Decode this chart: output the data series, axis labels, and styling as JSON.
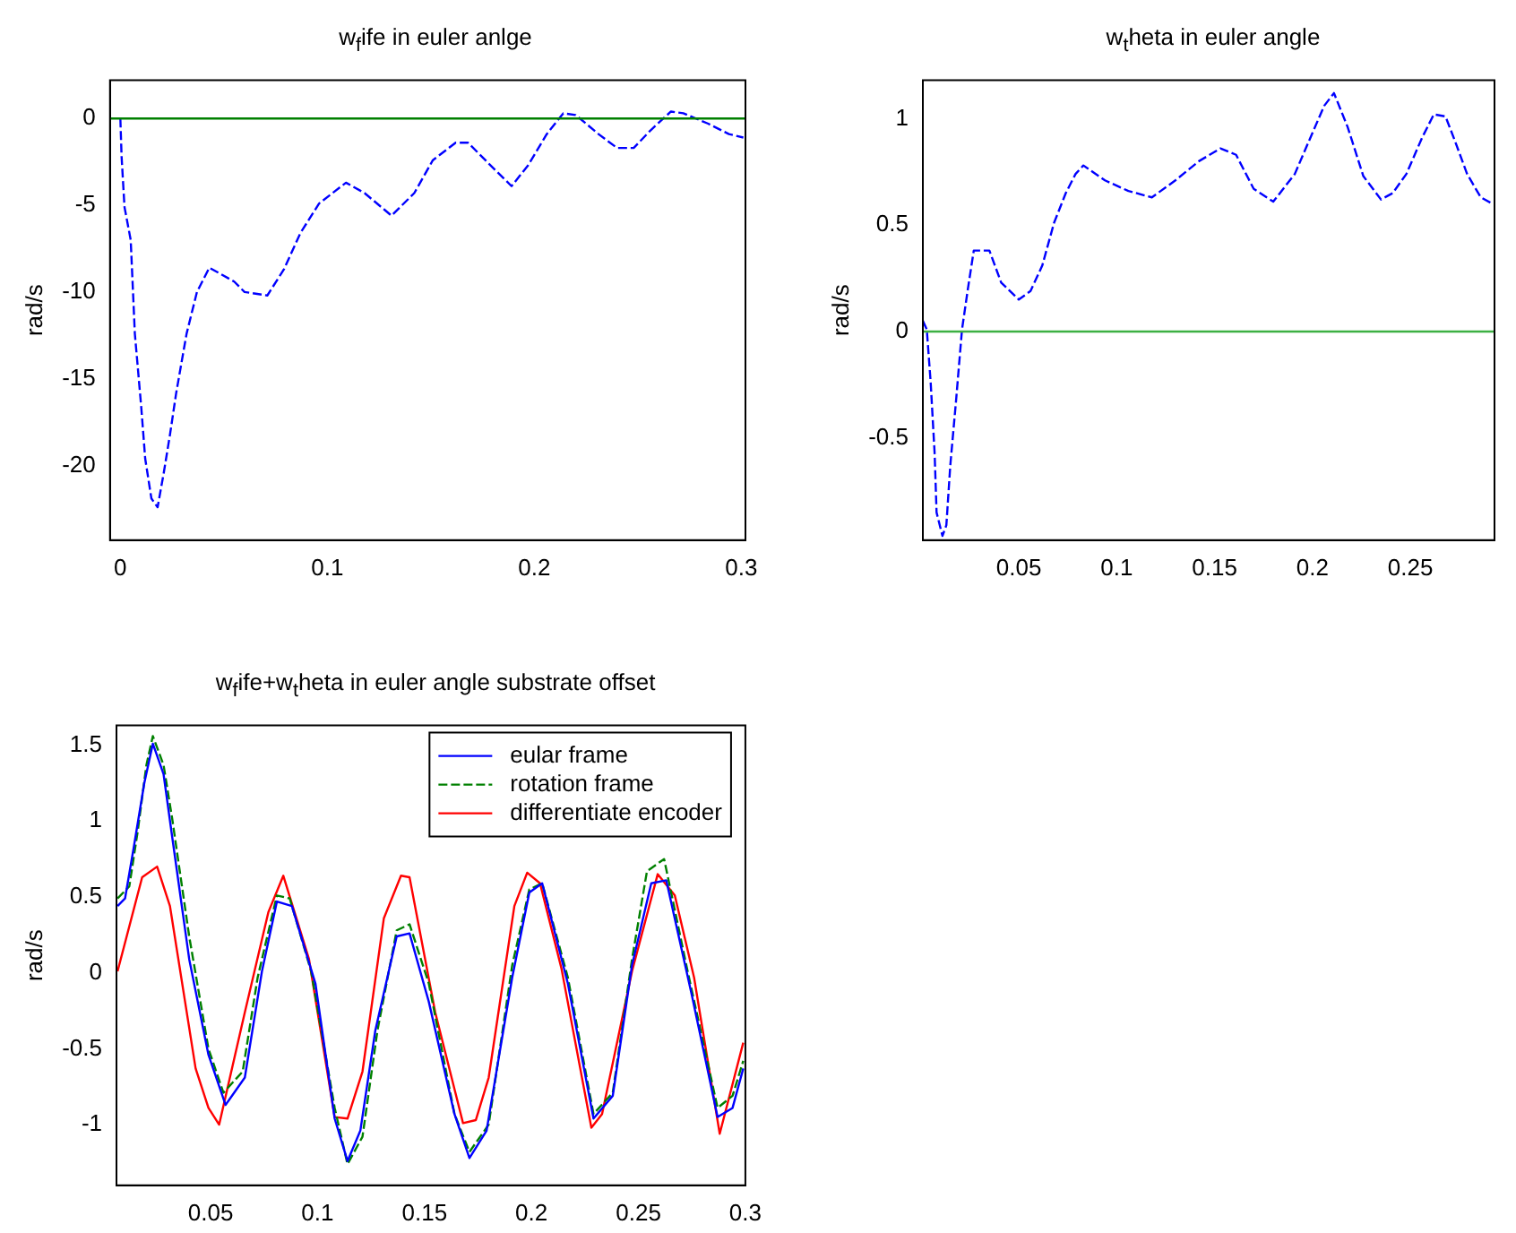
{
  "chart_data": [
    {
      "type": "line",
      "title": "w$_{f}$ife in euler anlge",
      "ylabel": "rad/s",
      "xlim": [
        -0.005,
        0.302
      ],
      "ylim": [
        -24.3,
        2.2
      ],
      "xticks": [
        0,
        0.1,
        0.2,
        0.3
      ],
      "yticks": [
        -20,
        -15,
        -10,
        -5,
        0
      ],
      "line_style": "dashed",
      "marker": "none",
      "grid": false,
      "legend": false,
      "ref_lines": [
        {
          "axis": "y",
          "value": 0,
          "color": "#008000",
          "line_style": "solid"
        }
      ],
      "series": [
        {
          "color": "#0000ff",
          "x": [
            0,
            0.0006,
            0.002,
            0.005,
            0.007,
            0.01,
            0.012,
            0.015,
            0.018,
            0.021,
            0.024,
            0.027,
            0.032,
            0.037,
            0.043,
            0.055,
            0.06,
            0.071,
            0.079,
            0.087,
            0.096,
            0.109,
            0.118,
            0.131,
            0.142,
            0.151,
            0.162,
            0.168,
            0.178,
            0.189,
            0.197,
            0.206,
            0.214,
            0.22,
            0.231,
            0.24,
            0.248,
            0.256,
            0.266,
            0.272,
            0.284,
            0.294,
            0.301
          ],
          "values": [
            0,
            -2.2,
            -5.1,
            -7,
            -12.4,
            -16.5,
            -19.6,
            -21.9,
            -22.4,
            -20.4,
            -18.2,
            -15.8,
            -12.4,
            -10,
            -8.6,
            -9.4,
            -10,
            -10.2,
            -8.7,
            -6.6,
            -4.9,
            -3.7,
            -4.3,
            -5.6,
            -4.3,
            -2.4,
            -1.4,
            -1.4,
            -2.6,
            -3.9,
            -2.7,
            -0.9,
            0.3,
            0.2,
            -0.9,
            -1.7,
            -1.7,
            -0.7,
            0.4,
            0.3,
            -0.3,
            -0.9,
            -1.1
          ]
        }
      ]
    },
    {
      "type": "line",
      "title": "w$_{t}$heta in euler angle",
      "ylabel": "rad/s",
      "xlim": [
        0.001,
        0.293
      ],
      "ylim": [
        -0.98,
        1.18
      ],
      "xticks": [
        0.05,
        0.1,
        0.15,
        0.2,
        0.25
      ],
      "yticks": [
        -0.5,
        0,
        0.5,
        1
      ],
      "line_style": "dashed",
      "marker": "none",
      "grid": false,
      "legend": false,
      "ref_lines": [
        {
          "axis": "y",
          "value": 0,
          "color": "#3cb043",
          "line_style": "solid"
        }
      ],
      "series": [
        {
          "color": "#0000ff",
          "x": [
            0.001,
            0.003,
            0.005,
            0.007,
            0.008,
            0.011,
            0.013,
            0.015,
            0.018,
            0.021,
            0.024,
            0.027,
            0.035,
            0.041,
            0.05,
            0.056,
            0.062,
            0.068,
            0.074,
            0.079,
            0.083,
            0.094,
            0.106,
            0.118,
            0.13,
            0.142,
            0.153,
            0.161,
            0.17,
            0.18,
            0.191,
            0.198,
            0.206,
            0.211,
            0.218,
            0.226,
            0.235,
            0.241,
            0.248,
            0.256,
            0.262,
            0.268,
            0.273,
            0.279,
            0.286,
            0.292
          ],
          "values": [
            0.05,
            0.01,
            -0.24,
            -0.57,
            -0.85,
            -0.96,
            -0.91,
            -0.63,
            -0.32,
            0.01,
            0.2,
            0.38,
            0.38,
            0.23,
            0.15,
            0.19,
            0.31,
            0.51,
            0.65,
            0.74,
            0.78,
            0.71,
            0.66,
            0.63,
            0.71,
            0.8,
            0.86,
            0.83,
            0.67,
            0.61,
            0.74,
            0.89,
            1.06,
            1.12,
            0.96,
            0.73,
            0.62,
            0.65,
            0.74,
            0.91,
            1.02,
            1.01,
            0.89,
            0.74,
            0.63,
            0.6
          ]
        }
      ]
    },
    {
      "type": "line",
      "title": "w$_{f}$ife+w$_{t}$heta in euler angle substrate offset",
      "ylabel": "rad/s",
      "xlim": [
        0.006,
        0.3
      ],
      "ylim": [
        -1.4,
        1.63
      ],
      "xticks": [
        0.05,
        0.1,
        0.15,
        0.2,
        0.25,
        0.3
      ],
      "yticks": [
        -1,
        -0.5,
        0,
        0.5,
        1,
        1.5
      ],
      "marker": "none",
      "grid": false,
      "legend": "top right",
      "series": [
        {
          "name": "eular frame",
          "color": "#0000ff",
          "line_style": "solid",
          "x": [
            0.0065,
            0.01,
            0.014,
            0.019,
            0.023,
            0.028,
            0.032,
            0.04,
            0.049,
            0.057,
            0.066,
            0.074,
            0.081,
            0.088,
            0.099,
            0.108,
            0.114,
            0.12,
            0.127,
            0.137,
            0.143,
            0.152,
            0.164,
            0.171,
            0.179,
            0.191,
            0.199,
            0.205,
            0.217,
            0.229,
            0.238,
            0.247,
            0.256,
            0.263,
            0.275,
            0.287,
            0.294,
            0.299
          ],
          "values": [
            0.44,
            0.49,
            0.82,
            1.25,
            1.51,
            1.31,
            0.9,
            0.09,
            -0.54,
            -0.87,
            -0.69,
            0.01,
            0.47,
            0.44,
            -0.07,
            -0.96,
            -1.24,
            -1.04,
            -0.38,
            0.24,
            0.26,
            -0.19,
            -0.93,
            -1.22,
            -1.04,
            -0.03,
            0.53,
            0.59,
            -0.07,
            -0.96,
            -0.81,
            0.05,
            0.59,
            0.61,
            -0.15,
            -0.95,
            -0.89,
            -0.63
          ]
        },
        {
          "name": "rotation frame",
          "color": "#008000",
          "line_style": "dashed",
          "x": [
            0.0065,
            0.012,
            0.016,
            0.02,
            0.023,
            0.028,
            0.032,
            0.04,
            0.049,
            0.056,
            0.065,
            0.072,
            0.081,
            0.087,
            0.097,
            0.108,
            0.114,
            0.121,
            0.128,
            0.137,
            0.143,
            0.152,
            0.164,
            0.171,
            0.18,
            0.191,
            0.199,
            0.205,
            0.217,
            0.229,
            0.238,
            0.247,
            0.254,
            0.262,
            0.273,
            0.287,
            0.294,
            0.299
          ],
          "values": [
            0.49,
            0.57,
            0.94,
            1.37,
            1.56,
            1.37,
            1.02,
            0.24,
            -0.5,
            -0.79,
            -0.65,
            -0.03,
            0.51,
            0.49,
            0.01,
            -0.89,
            -1.26,
            -1.08,
            -0.38,
            0.28,
            0.32,
            -0.07,
            -0.93,
            -1.18,
            -1.0,
            0.05,
            0.55,
            0.59,
            -0.03,
            -0.93,
            -0.79,
            0.09,
            0.67,
            0.75,
            0.01,
            -0.89,
            -0.81,
            -0.58
          ]
        },
        {
          "name": "differentiate encoder",
          "color": "#ff0000",
          "line_style": "solid",
          "x": [
            0.0065,
            0.018,
            0.025,
            0.031,
            0.043,
            0.049,
            0.054,
            0.066,
            0.077,
            0.084,
            0.096,
            0.108,
            0.114,
            0.121,
            0.131,
            0.139,
            0.143,
            0.155,
            0.168,
            0.174,
            0.18,
            0.192,
            0.198,
            0.204,
            0.214,
            0.228,
            0.233,
            0.247,
            0.259,
            0.267,
            0.276,
            0.288,
            0.299
          ],
          "values": [
            0.01,
            0.63,
            0.7,
            0.44,
            -0.63,
            -0.89,
            -1.0,
            -0.26,
            0.4,
            0.64,
            0.09,
            -0.95,
            -0.96,
            -0.65,
            0.36,
            0.64,
            0.63,
            -0.26,
            -0.99,
            -0.97,
            -0.69,
            0.44,
            0.66,
            0.59,
            0.03,
            -1.02,
            -0.93,
            0.01,
            0.65,
            0.51,
            -0.03,
            -1.06,
            -0.46
          ]
        }
      ]
    }
  ]
}
